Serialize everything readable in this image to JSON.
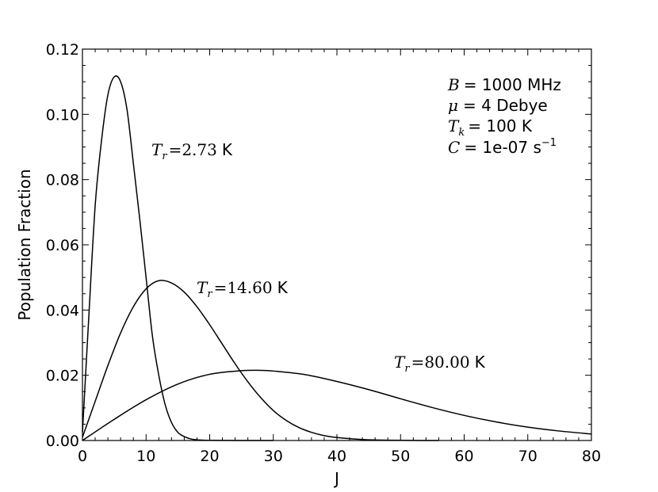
{
  "chart_data": {
    "type": "line",
    "xlabel": "J",
    "ylabel": "Population Fraction",
    "xlim": [
      0,
      80
    ],
    "ylim": [
      0,
      0.12
    ],
    "xticks": [
      "0",
      "10",
      "20",
      "30",
      "40",
      "50",
      "60",
      "70",
      "80"
    ],
    "yticks": [
      "0.00",
      "0.02",
      "0.04",
      "0.06",
      "0.08",
      "0.10",
      "0.12"
    ],
    "grid": false,
    "series": [
      {
        "name": "T_r = 2.73 K",
        "label_value": "2.73",
        "x": [
          0,
          1,
          2,
          3,
          4,
          5,
          6,
          7,
          8,
          9,
          10,
          11,
          12,
          13,
          14,
          15,
          16,
          17,
          18,
          19,
          20,
          22,
          25,
          30
        ],
        "y": [
          0.0025,
          0.038,
          0.072,
          0.092,
          0.106,
          0.1115,
          0.11,
          0.1015,
          0.085,
          0.068,
          0.05,
          0.032,
          0.02,
          0.011,
          0.0055,
          0.0025,
          0.0012,
          0.0005,
          0.0002,
          0.0001,
          5e-05,
          2e-05,
          0.0,
          0.0
        ]
      },
      {
        "name": "T_r = 14.60 K",
        "label_value": "14.60",
        "x": [
          0,
          2,
          4,
          6,
          8,
          10,
          12,
          14,
          16,
          18,
          20,
          22,
          24,
          26,
          28,
          30,
          32,
          34,
          36,
          38,
          40,
          44,
          48,
          52,
          56
        ],
        "y": [
          0.001,
          0.012,
          0.023,
          0.033,
          0.041,
          0.0465,
          0.049,
          0.0483,
          0.0455,
          0.041,
          0.0355,
          0.0295,
          0.0235,
          0.018,
          0.0132,
          0.0092,
          0.0062,
          0.004,
          0.0025,
          0.0015,
          0.0009,
          0.0003,
          0.0001,
          3e-05,
          0.0
        ]
      },
      {
        "name": "T_r = 80.00 K",
        "label_value": "80.00",
        "x": [
          0,
          5,
          10,
          15,
          20,
          25,
          28,
          30,
          35,
          40,
          45,
          50,
          55,
          60,
          65,
          70,
          75,
          80
        ],
        "y": [
          0.0,
          0.0065,
          0.0125,
          0.0173,
          0.0203,
          0.0214,
          0.0215,
          0.0213,
          0.0202,
          0.0181,
          0.0156,
          0.0128,
          0.0101,
          0.0077,
          0.0057,
          0.0041,
          0.0029,
          0.002
        ]
      }
    ],
    "annotation": {
      "B_symbol": "B",
      "B_value": "= 1000 MHz",
      "mu_symbol": "μ",
      "mu_value": "= 4 Debye",
      "Tk_symbol": "T",
      "Tk_sub": "k",
      "Tk_value": "= 100 K",
      "C_symbol": "C",
      "C_value": "= 1e-07 s",
      "C_sup": "−1"
    },
    "curve_label_parts": {
      "T": "T",
      "sub": "r",
      "eq": "=",
      "unit": "K"
    }
  }
}
